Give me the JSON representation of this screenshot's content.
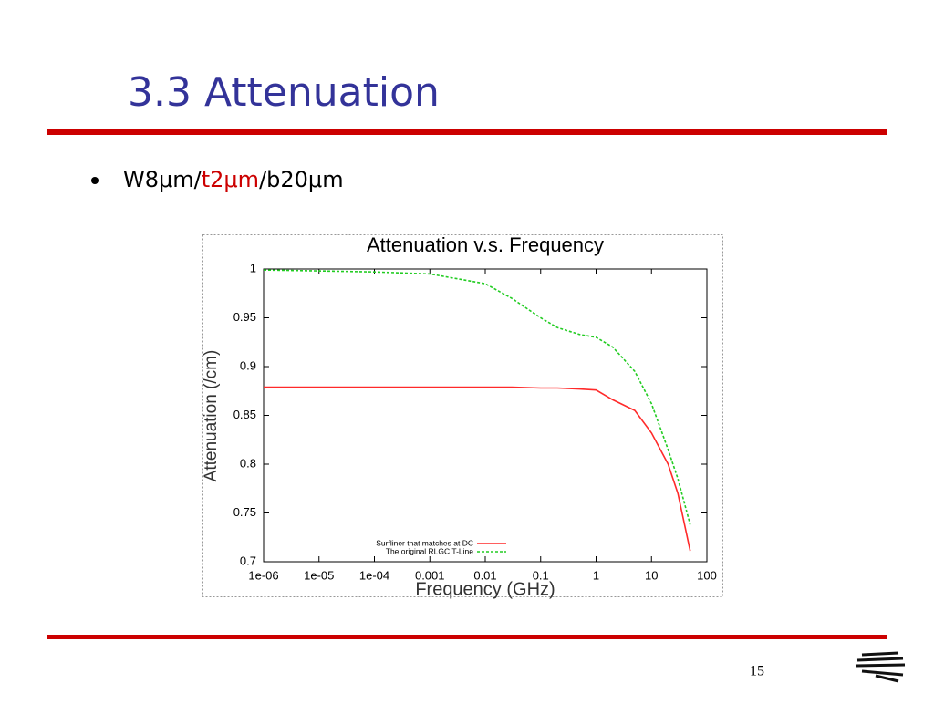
{
  "slide": {
    "title": "3.3 Attenuation",
    "bullet": [
      "W8μm/",
      "t2μm",
      "/b20μm"
    ],
    "page_number": "15"
  },
  "chart_data": {
    "type": "line",
    "title": "Attenuation v.s. Frequency",
    "x_label": "Frequency (GHz)",
    "y_label": "Attenuation (/cm)",
    "x_scale": "log",
    "x": [
      1e-06,
      1e-05,
      0.0001,
      0.001,
      0.01,
      0.03,
      0.1,
      0.2,
      0.5,
      1,
      2,
      5,
      10,
      20,
      30,
      50
    ],
    "series": [
      {
        "name": "Surfliner that matches at DC",
        "color": "#ff2a2a",
        "style": "solid",
        "values": [
          0.879,
          0.879,
          0.879,
          0.879,
          0.879,
          0.879,
          0.878,
          0.878,
          0.877,
          0.876,
          0.866,
          0.855,
          0.832,
          0.8,
          0.77,
          0.711
        ]
      },
      {
        "name": "The original RLGC T-Line",
        "color": "#22cc22",
        "style": "dashed",
        "values": [
          0.999,
          0.998,
          0.997,
          0.995,
          0.985,
          0.97,
          0.95,
          0.94,
          0.933,
          0.93,
          0.92,
          0.895,
          0.862,
          0.815,
          0.785,
          0.738
        ]
      }
    ],
    "xlim": [
      1e-06,
      100
    ],
    "xticks": [
      {
        "value": 1e-06,
        "label": "1e-06"
      },
      {
        "value": 1e-05,
        "label": "1e-05"
      },
      {
        "value": 0.0001,
        "label": "1e-04"
      },
      0.001,
      0.01,
      0.1,
      1,
      10,
      100
    ],
    "ylim": [
      0.7,
      1
    ],
    "yticks": [
      0.7,
      0.75,
      0.8,
      0.85,
      0.9,
      0.95,
      1
    ],
    "grid": false,
    "legend": "lower left"
  }
}
